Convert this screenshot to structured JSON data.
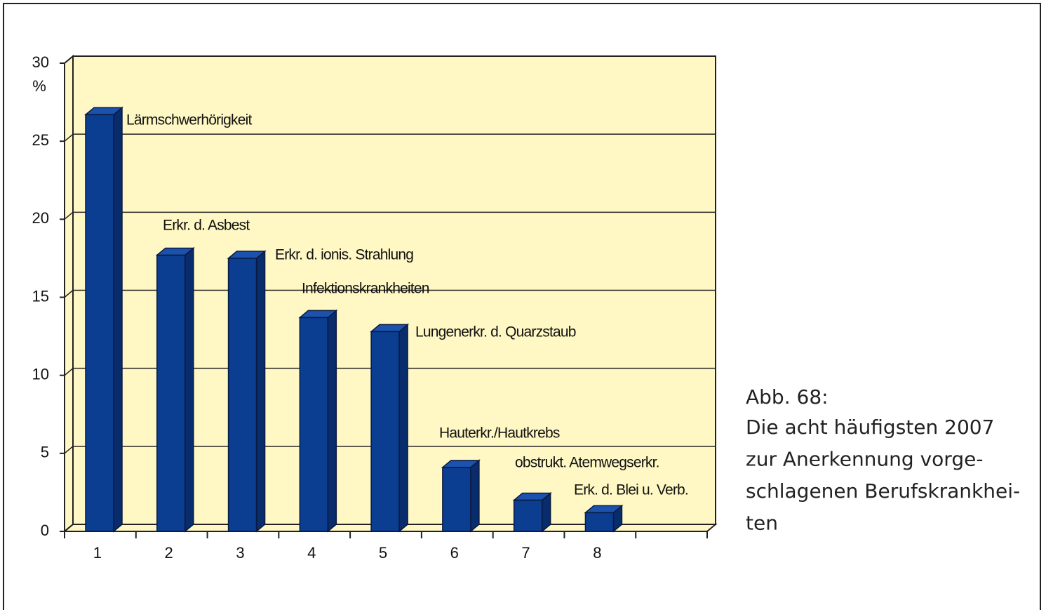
{
  "chart_data": {
    "type": "bar",
    "categories": [
      "1",
      "2",
      "3",
      "4",
      "5",
      "6",
      "7",
      "8",
      null
    ],
    "values": [
      26.7,
      17.7,
      17.5,
      13.7,
      12.8,
      4.1,
      2.0,
      1.2,
      null
    ],
    "annotations": [
      "Lärmschwerhörigkeit",
      "Erkr. d. Asbest",
      "Erkr. d. ionis. Strahlung",
      "Infektionskrankheiten",
      "Lungenerkr. d. Quarzstaub",
      "Hauterkr./Hautkrebs",
      "obstrukt. Atemwegserkr.",
      "Erk. d. Blei u. Verb."
    ],
    "ylabel": "%",
    "ylim": [
      0,
      30
    ],
    "yticks": [
      0,
      5,
      10,
      15,
      20,
      25,
      30
    ],
    "grid": true,
    "color": "#0b3d91",
    "wall_color": "#fff8c4"
  },
  "caption": {
    "label": "Abb. 68:",
    "lines": [
      "Die acht häufigsten 2007",
      "zur Anerkennung vorge-",
      "schlagenen Berufskrankhei-",
      "ten"
    ]
  }
}
